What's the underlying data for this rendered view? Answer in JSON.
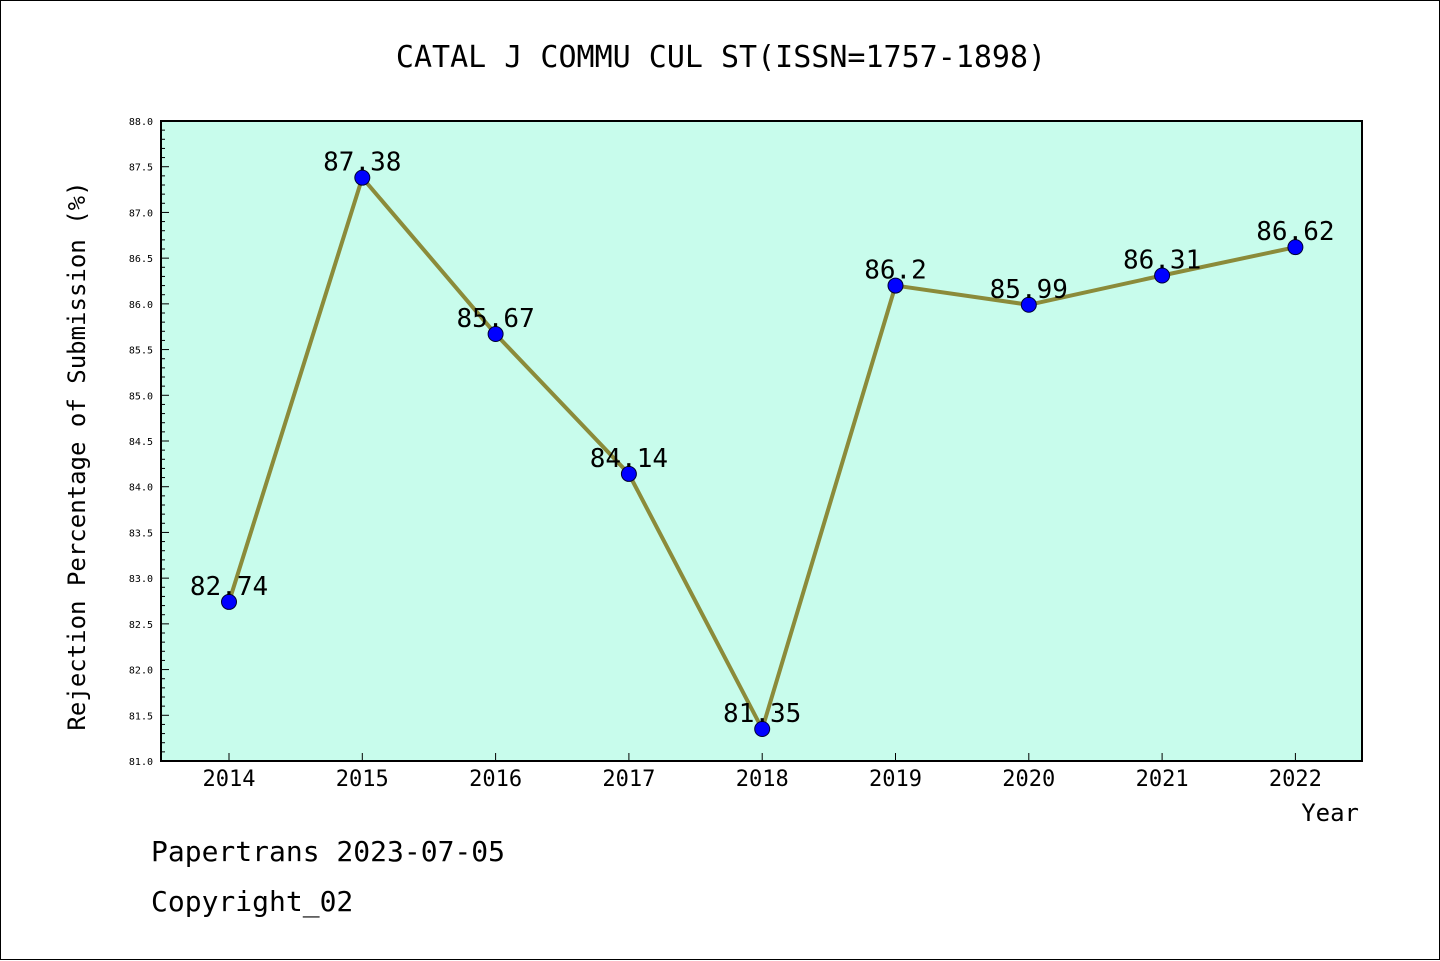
{
  "chart_data": {
    "type": "line",
    "title": "CATAL J COMMU CUL ST(ISSN=1757-1898)",
    "xlabel": "Year",
    "ylabel": "Rejection Percentage of Submission (%)",
    "categories": [
      "2014",
      "2015",
      "2016",
      "2017",
      "2018",
      "2019",
      "2020",
      "2021",
      "2022"
    ],
    "series": [
      {
        "values": [
          82.74,
          87.38,
          85.67,
          84.14,
          81.35,
          86.2,
          85.99,
          86.31,
          86.62
        ],
        "labels": [
          "82.74",
          "87.38",
          "85.67",
          "84.14",
          "81.35",
          "86.2",
          "85.99",
          "86.31",
          "86.62"
        ]
      }
    ],
    "ylim": [
      81.0,
      88.0
    ],
    "y_ticks": [
      "81.0",
      "81.5",
      "82.0",
      "82.5",
      "83.0",
      "83.5",
      "84.0",
      "84.5",
      "85.0",
      "85.5",
      "86.0",
      "86.5",
      "87.0",
      "87.5",
      "88.0"
    ],
    "grid": false,
    "colors": {
      "plot_background": "#c8fcec",
      "line": "#8b8b3a",
      "marker": "#0000ff"
    }
  },
  "footer": {
    "line1": "Papertrans 2023-07-05",
    "line2": "Copyright_02"
  }
}
